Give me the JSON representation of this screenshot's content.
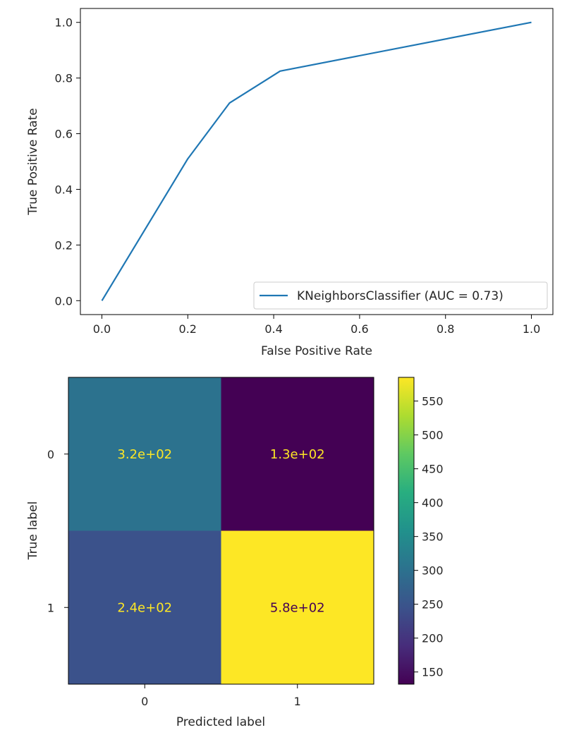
{
  "chart_data": [
    {
      "type": "line",
      "xlabel": "False Positive Rate",
      "ylabel": "True Positive Rate",
      "xlim": [
        -0.05,
        1.05
      ],
      "ylim": [
        -0.05,
        1.05
      ],
      "xticks": [
        "0.0",
        "0.2",
        "0.4",
        "0.6",
        "0.8",
        "1.0"
      ],
      "yticks": [
        "0.0",
        "0.2",
        "0.4",
        "0.6",
        "0.8",
        "1.0"
      ],
      "grid": false,
      "legend_position": "bottom-right",
      "series": [
        {
          "name": "KNeighborsClassifier (AUC = 0.73)",
          "color": "#1f77b4",
          "x": [
            0.0,
            0.2,
            0.297,
            0.415,
            1.0
          ],
          "y": [
            0.0,
            0.51,
            0.71,
            0.825,
            1.0
          ]
        }
      ]
    },
    {
      "type": "heatmap",
      "xlabel": "Predicted label",
      "ylabel": "True label",
      "x_categories": [
        "0",
        "1"
      ],
      "y_categories": [
        "0",
        "1"
      ],
      "values": [
        [
          320,
          130
        ],
        [
          240,
          580
        ]
      ],
      "cell_labels": [
        [
          "3.2e+02",
          "1.3e+02"
        ],
        [
          "2.4e+02",
          "5.8e+02"
        ]
      ],
      "cell_colors": [
        [
          "#2c728e",
          "#440154"
        ],
        [
          "#3b528b",
          "#fde725"
        ]
      ],
      "cell_text_colors": [
        [
          "#fde725",
          "#fde725"
        ],
        [
          "#fde725",
          "#440154"
        ]
      ],
      "colorbar": {
        "colormap": "viridis",
        "min": 132,
        "max": 585,
        "ticks": [
          "150",
          "200",
          "250",
          "300",
          "350",
          "400",
          "450",
          "500",
          "550"
        ]
      }
    }
  ]
}
